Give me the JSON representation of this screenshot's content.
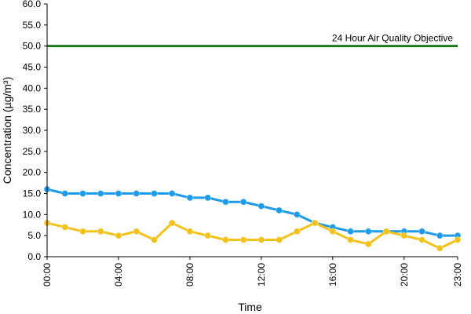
{
  "chart_data": {
    "type": "line",
    "title": "",
    "xlabel": "Time",
    "ylabel": "Concentration (µg/m³)",
    "ylim": [
      0,
      60
    ],
    "yticks": [
      "0.0",
      "5.0",
      "10.0",
      "15.0",
      "20.0",
      "25.0",
      "30.0",
      "35.0",
      "40.0",
      "45.0",
      "50.0",
      "55.0",
      "60.0"
    ],
    "x": [
      "00:00",
      "01:00",
      "02:00",
      "03:00",
      "04:00",
      "05:00",
      "06:00",
      "07:00",
      "08:00",
      "09:00",
      "10:00",
      "11:00",
      "12:00",
      "13:00",
      "14:00",
      "15:00",
      "16:00",
      "17:00",
      "18:00",
      "19:00",
      "20:00",
      "21:00",
      "22:00",
      "23:00"
    ],
    "xtick_labels": [
      "00:00",
      "04:00",
      "08:00",
      "12:00",
      "16:00",
      "20:00",
      "23:00"
    ],
    "grid": false,
    "legend": "none",
    "series": [
      {
        "color": "#1e9be8",
        "values": [
          16,
          15,
          15,
          15,
          15,
          15,
          15,
          15,
          14,
          14,
          13,
          13,
          12,
          11,
          10,
          8,
          7,
          6,
          6,
          6,
          6,
          6,
          5,
          5
        ]
      },
      {
        "color": "#f2c21b",
        "values": [
          8,
          7,
          6,
          6,
          5,
          6,
          4,
          8,
          6,
          5,
          4,
          4,
          4,
          4,
          6,
          8,
          6,
          4,
          3,
          6,
          5,
          4,
          2,
          4
        ]
      }
    ],
    "reference_line": {
      "value": 50,
      "label": "24 Hour Air Quality Objective",
      "color": "#1f7a1f"
    }
  }
}
